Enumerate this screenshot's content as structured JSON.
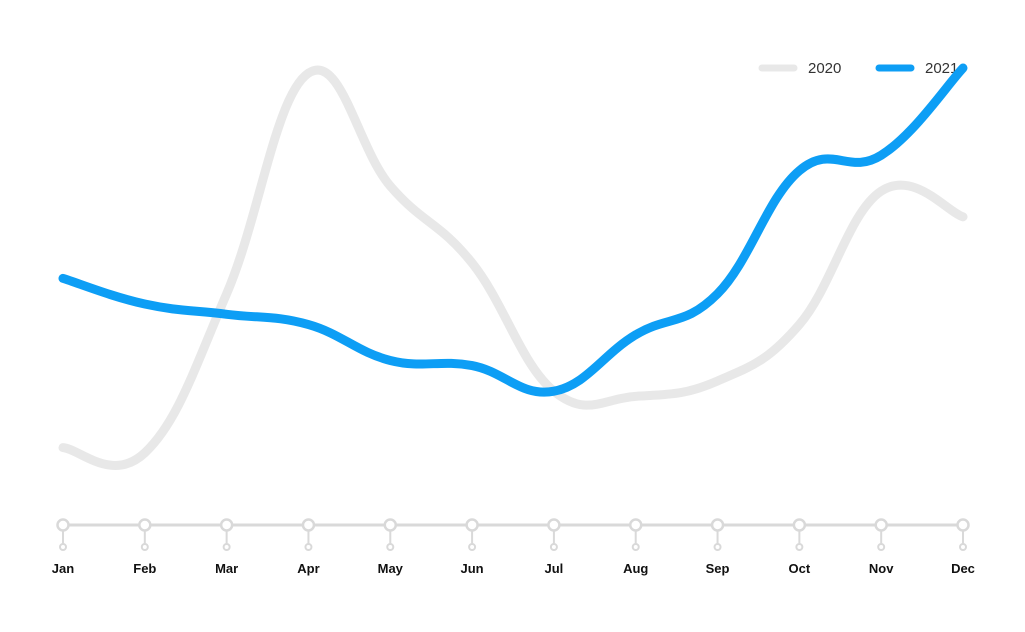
{
  "colors": {
    "series_2020": "#e8e8e8",
    "series_2021": "#0d9ef5",
    "axis": "#d9d9d9"
  },
  "chart_data": {
    "type": "line",
    "categories": [
      "Jan",
      "Feb",
      "Mar",
      "Apr",
      "May",
      "Jun",
      "Jul",
      "Aug",
      "Sep",
      "Oct",
      "Nov",
      "Dec"
    ],
    "series": [
      {
        "name": "2020",
        "values": [
          18,
          17,
          48,
          91,
          69,
          54,
          29,
          28,
          31,
          42,
          68,
          63
        ]
      },
      {
        "name": "2021",
        "values": [
          51,
          46,
          44,
          42,
          35,
          34,
          29,
          40,
          48,
          72,
          75,
          92
        ]
      }
    ],
    "ylim": [
      0,
      100
    ],
    "grid": false,
    "legend": "top-right",
    "smooth": true
  }
}
